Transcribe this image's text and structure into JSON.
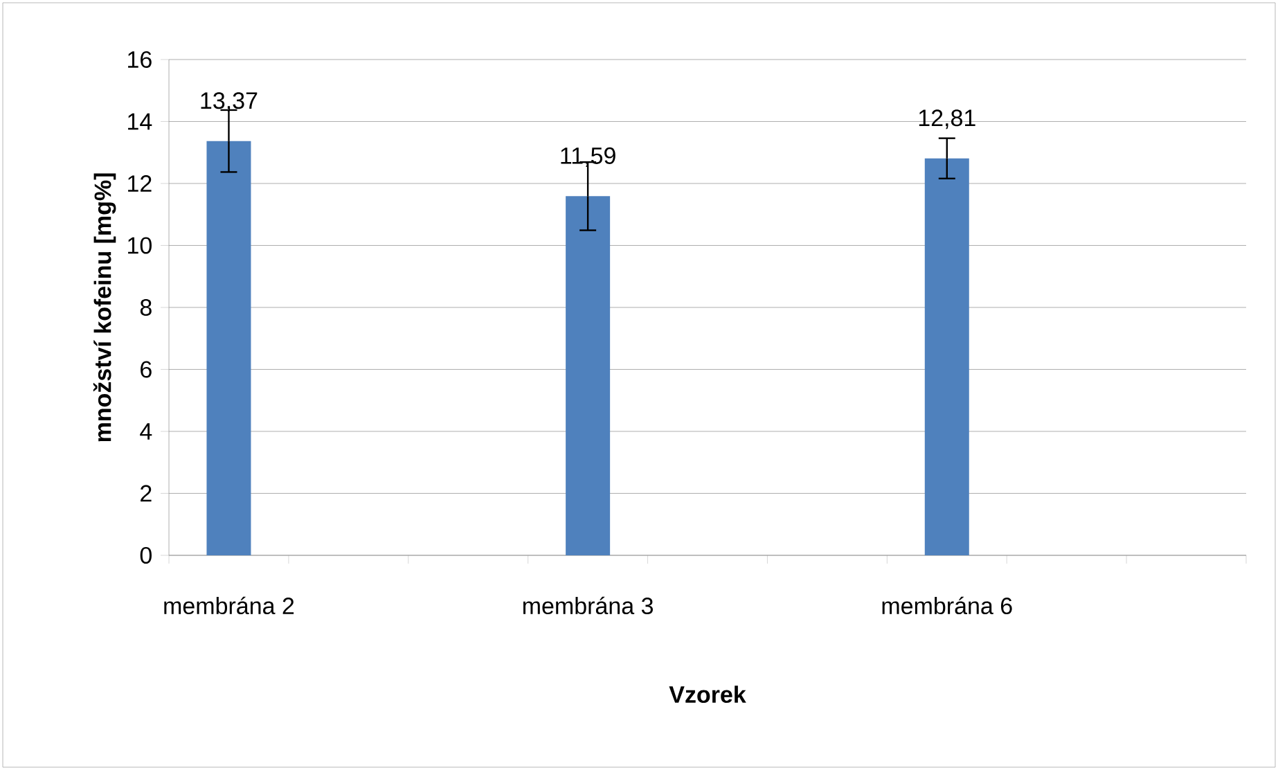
{
  "chart_data": {
    "type": "bar",
    "xlabel": "Vzorek",
    "ylabel": "množství kofeinu [mg%]",
    "categories": [
      "membrána 2",
      null,
      null,
      "membrána 3",
      null,
      null,
      "membrána 6",
      null,
      null
    ],
    "values": [
      13.37,
      null,
      null,
      11.59,
      null,
      null,
      12.81,
      null,
      null
    ],
    "value_labels": [
      "13,37",
      null,
      null,
      "11,59",
      null,
      null,
      "12,81",
      null,
      null
    ],
    "errors": [
      1.0,
      null,
      null,
      1.1,
      null,
      null,
      0.65,
      null,
      null
    ],
    "color": "#4f81bd",
    "ylim": [
      0,
      16
    ],
    "yticks": [
      0,
      2,
      4,
      6,
      8,
      10,
      12,
      14,
      16
    ],
    "grid": "y"
  }
}
